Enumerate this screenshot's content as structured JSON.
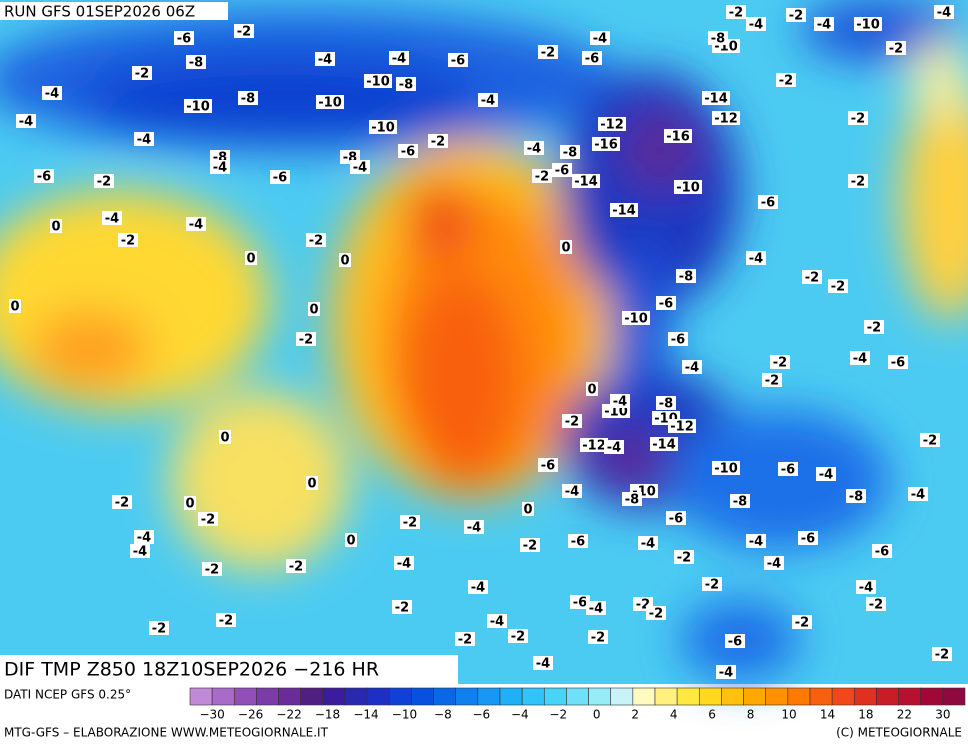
{
  "header": {
    "run": "RUN GFS 01SEP2026 06Z"
  },
  "footer": {
    "title": "DIF TMP Z850 18Z10SEP2026 −216 HR",
    "source": "DATI NCEP GFS 0.25°",
    "credit": "MTG-GFS – ELABORAZIONE WWW.METEOGIORNALE.IT",
    "copyright": "(C) METEOGIORNALE"
  },
  "colorbar": {
    "labels": [
      "−30",
      "−26",
      "−22",
      "−18",
      "−14",
      "−10",
      "−8",
      "−6",
      "−4",
      "−2",
      "0",
      "2",
      "4",
      "6",
      "8",
      "10",
      "14",
      "18",
      "22",
      "30"
    ],
    "colors": [
      "#c08ad8",
      "#a86cc8",
      "#9050b8",
      "#7a3ca8",
      "#6a2c98",
      "#502080",
      "#3a1c9c",
      "#2828b0",
      "#1c30c8",
      "#1040d8",
      "#0850e0",
      "#0a68e8",
      "#1080f0",
      "#1898f4",
      "#20b0f8",
      "#30c4f8",
      "#48d4f8",
      "#70e0f8",
      "#98ecf8",
      "#c8f4f8",
      "#fffac0",
      "#fff080",
      "#ffe840",
      "#ffd820",
      "#ffc010",
      "#ffa800",
      "#ff9000",
      "#ff7800",
      "#f86010",
      "#f04818",
      "#e03020",
      "#c81c28",
      "#b81030",
      "#a00838",
      "#900840"
    ]
  },
  "map_labels": [
    -6,
    -2,
    -2,
    -8,
    -4,
    -4,
    -4,
    -6,
    -2,
    -4,
    -6,
    -10,
    -8,
    -10,
    -10,
    -8,
    -4,
    -10,
    -2,
    -6,
    -4,
    -4,
    -8,
    -4,
    -8,
    -4,
    -6,
    -2,
    -6,
    -4,
    -4,
    0,
    -2,
    -2,
    0,
    0,
    0,
    0,
    -2,
    0,
    0,
    -2,
    0,
    -2,
    -4,
    -4,
    -2,
    -2,
    -2,
    -2,
    -2,
    -4,
    0,
    0,
    -4,
    -2,
    -6,
    -4,
    -2,
    -4,
    -6,
    -4,
    -2,
    -4,
    -2,
    -4,
    -2,
    -2,
    -2,
    -6,
    -4,
    -2,
    -2,
    -2,
    -6,
    -4,
    -4,
    -2,
    -2,
    -4,
    -6,
    -4,
    -8,
    -4,
    -6,
    -10,
    -8,
    -6,
    -10,
    -8,
    -14,
    -12,
    -4,
    -8,
    -10,
    -12,
    -10,
    -4,
    0,
    -2,
    -6,
    -4,
    -10,
    -6,
    -4,
    -6,
    -8,
    -4,
    -2,
    -2,
    -2,
    -4,
    -6,
    -2,
    -2,
    -2,
    0,
    -14,
    -10,
    -6,
    -2,
    -14,
    -2,
    -6,
    -8,
    -4,
    -16,
    -12,
    -16,
    -12,
    -14,
    -2,
    -2,
    -10,
    -8,
    -2,
    -4,
    -2,
    -4,
    -10,
    -4,
    -2
  ]
}
